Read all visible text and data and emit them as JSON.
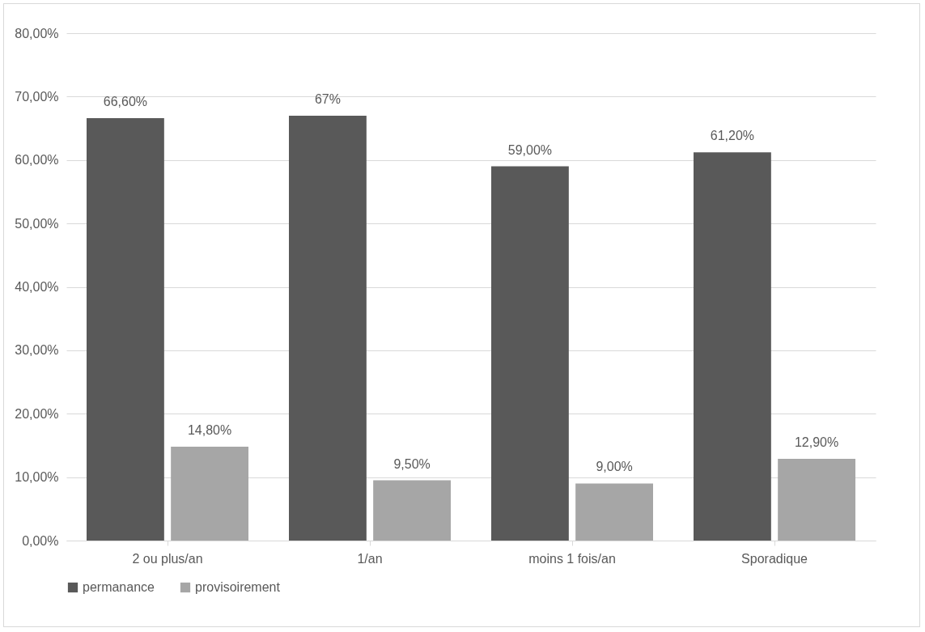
{
  "chart_data": {
    "type": "bar",
    "categories": [
      "2 ou plus/an",
      "1/an",
      "moins 1 fois/an",
      "Sporadique"
    ],
    "series": [
      {
        "name": "permanance",
        "color": "#595959",
        "values": [
          66.6,
          67,
          59,
          61.2
        ],
        "value_labels": [
          "66,60%",
          "67%",
          "59,00%",
          "61,20%"
        ]
      },
      {
        "name": "provisoirement",
        "color": "#a6a6a6",
        "values": [
          14.8,
          9.5,
          9,
          12.9
        ],
        "value_labels": [
          "14,80%",
          "9,50%",
          "9,00%",
          "12,90%"
        ]
      }
    ],
    "ylim": [
      0,
      80
    ],
    "yticks": [
      {
        "value": 0,
        "label": "0,00%"
      },
      {
        "value": 10,
        "label": "10,00%"
      },
      {
        "value": 20,
        "label": "20,00%"
      },
      {
        "value": 30,
        "label": "30,00%"
      },
      {
        "value": 40,
        "label": "40,00%"
      },
      {
        "value": 50,
        "label": "50,00%"
      },
      {
        "value": 60,
        "label": "60,00%"
      },
      {
        "value": 70,
        "label": "70,00%"
      },
      {
        "value": 80,
        "label": "80,00%"
      }
    ],
    "grid": "y",
    "legend": "bottom"
  }
}
